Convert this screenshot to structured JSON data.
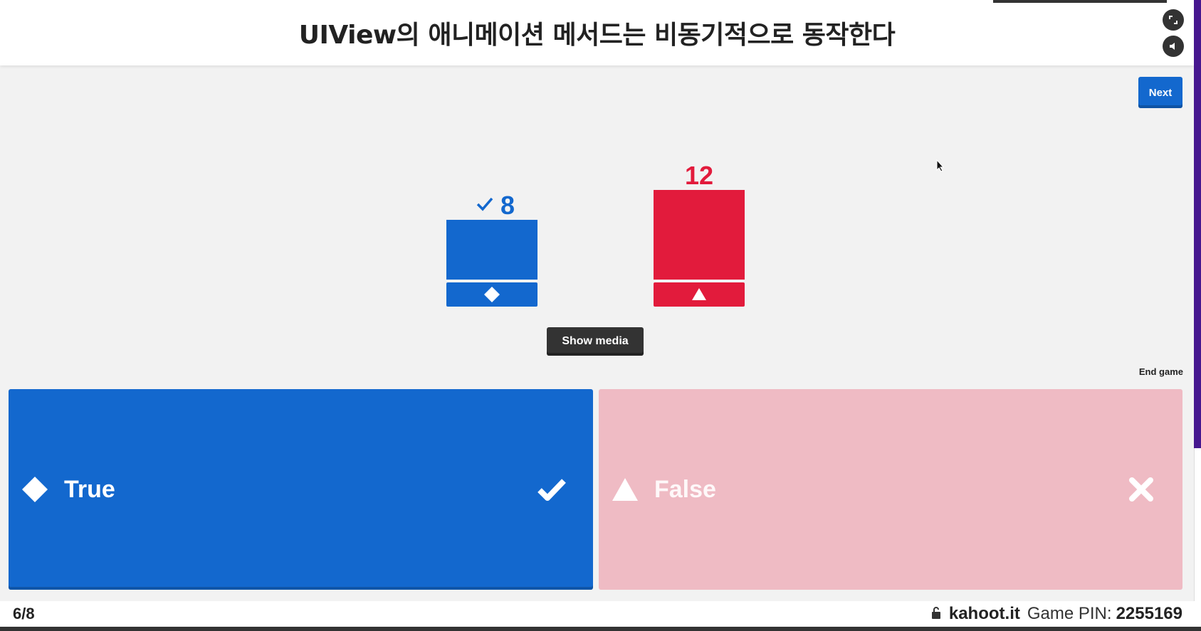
{
  "header": {
    "question": "UIView의 애니메이션 메서드는 비동기적으로 동작한다"
  },
  "controls": {
    "next_label": "Next",
    "show_media_label": "Show media",
    "end_game_label": "End game",
    "fullscreen_icon": "fullscreen-icon",
    "volume_icon": "volume-icon"
  },
  "chart_data": {
    "type": "bar",
    "categories": [
      "True",
      "False"
    ],
    "values": [
      8,
      12
    ],
    "correct": [
      true,
      false
    ],
    "colors": [
      "#1368ce",
      "#e21b3c"
    ],
    "shapes": [
      "diamond",
      "triangle"
    ]
  },
  "answers": [
    {
      "label": "True",
      "shape_icon": "diamond-icon",
      "result_icon": "checkmark-icon",
      "color": "#1368ce",
      "correct": true
    },
    {
      "label": "False",
      "shape_icon": "triangle-icon",
      "result_icon": "cross-icon",
      "color": "#efbbc4",
      "correct": false
    }
  ],
  "footer": {
    "progress": "6/8",
    "site": "kahoot.it",
    "pin_label": "Game PIN:",
    "pin_value": "2255169"
  }
}
